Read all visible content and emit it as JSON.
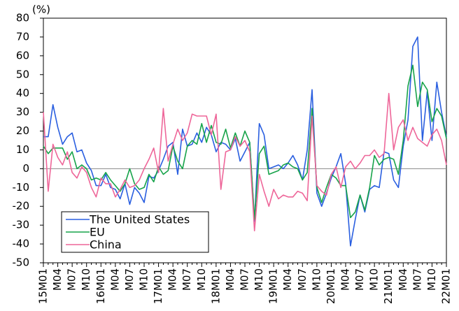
{
  "chart_data": {
    "type": "line",
    "y_label": "(%)",
    "categories": [
      "15M01",
      null,
      null,
      "M04",
      null,
      null,
      "M07",
      null,
      null,
      "M10",
      null,
      null,
      "16M01",
      null,
      null,
      "M04",
      null,
      null,
      "M07",
      null,
      null,
      "M10",
      null,
      null,
      "17M01",
      null,
      null,
      "M04",
      null,
      null,
      "M07",
      null,
      null,
      "M10",
      null,
      null,
      "18M01",
      null,
      null,
      "M04",
      null,
      null,
      "M07",
      null,
      null,
      "M10",
      null,
      null,
      "19M01",
      null,
      null,
      "M04",
      null,
      null,
      "M07",
      null,
      null,
      "M10",
      null,
      null,
      "20M01",
      null,
      null,
      "M04",
      null,
      null,
      "M07",
      null,
      null,
      "M10",
      null,
      null,
      "21M01",
      null,
      null,
      "M04",
      null,
      null,
      "M07",
      null,
      null,
      "M10",
      null,
      null,
      "22M01"
    ],
    "series": [
      {
        "name": "The United States",
        "color": "#2a5fe0",
        "values": [
          17,
          17,
          34,
          22,
          13,
          17,
          19,
          9,
          10,
          3,
          -1,
          -9,
          -9,
          -3,
          -10,
          -11,
          -16,
          -8,
          -19,
          -10,
          -13,
          -18,
          -4,
          -5,
          -1,
          5,
          12,
          14,
          -3,
          21,
          12,
          13,
          19,
          14,
          22,
          18,
          9,
          14,
          13,
          10,
          16,
          4,
          9,
          14,
          -28,
          24,
          18,
          0,
          1,
          2,
          0,
          3,
          7,
          2,
          -6,
          10,
          42,
          -13,
          -20,
          -13,
          -5,
          1,
          8,
          -8,
          -41,
          -27,
          -14,
          -23,
          -11,
          -9,
          -10,
          9,
          8,
          -6,
          -10,
          12,
          26,
          65,
          70,
          15,
          41,
          15,
          46,
          30,
          17
        ]
      },
      {
        "name": "EU",
        "color": "#17a34a",
        "values": [
          12,
          8,
          11,
          11,
          11,
          5,
          9,
          0,
          2,
          0,
          -6,
          -5,
          -6,
          -2,
          -6,
          -9,
          -12,
          -8,
          0,
          -8,
          -11,
          -10,
          -3,
          -7,
          1,
          -3,
          -1,
          12,
          4,
          0,
          12,
          15,
          13,
          24,
          14,
          23,
          14,
          13,
          21,
          11,
          19,
          12,
          20,
          14,
          -27,
          8,
          12,
          -3,
          -2,
          -1,
          2,
          3,
          1,
          0,
          -6,
          -2,
          32,
          -10,
          -18,
          -10,
          -3,
          -5,
          -9,
          -9,
          -26,
          -23,
          -14,
          -22,
          -10,
          7,
          2,
          5,
          6,
          5,
          -3,
          15,
          44,
          55,
          33,
          46,
          42,
          25,
          32,
          28,
          16
        ]
      },
      {
        "name": "China",
        "color": "#ee6699",
        "values": [
          30,
          -12,
          13,
          6,
          2,
          9,
          -2,
          -5,
          1,
          -2,
          -10,
          -15,
          -5,
          -8,
          -8,
          -15,
          -11,
          -6,
          -10,
          -9,
          -6,
          0,
          5,
          11,
          -2,
          32,
          4,
          13,
          21,
          15,
          19,
          29,
          28,
          28,
          28,
          18,
          29,
          -11,
          9,
          10,
          17,
          12,
          15,
          9,
          -33,
          -3,
          -12,
          -20,
          -11,
          -16,
          -14,
          -15,
          -15,
          -12,
          -13,
          -17,
          28,
          -9,
          -12,
          -14,
          -3,
          1,
          -10,
          1,
          4,
          0,
          3,
          7,
          7,
          10,
          6,
          8,
          40,
          10,
          22,
          26,
          15,
          22,
          16,
          14,
          12,
          18,
          21,
          15,
          2
        ]
      }
    ],
    "ylim": [
      -50,
      80
    ],
    "yticks": [
      -50,
      -40,
      -30,
      -20,
      -10,
      0,
      10,
      20,
      30,
      40,
      50,
      60,
      70,
      80
    ]
  }
}
